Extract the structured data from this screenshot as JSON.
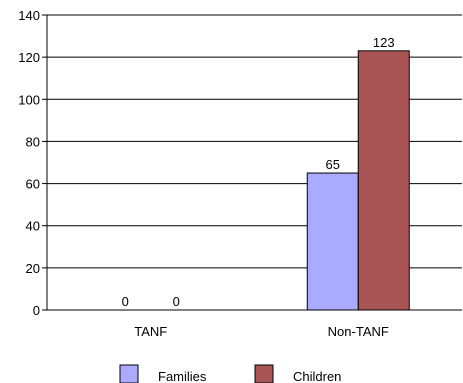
{
  "chart_data": {
    "type": "bar",
    "categories": [
      "TANF",
      "Non-TANF"
    ],
    "series": [
      {
        "name": "Families",
        "values": [
          0,
          65
        ],
        "color": "#aaaaff"
      },
      {
        "name": "Children",
        "values": [
          0,
          123
        ],
        "color": "#aa5555"
      }
    ],
    "data_labels": [
      [
        "0",
        "65"
      ],
      [
        "0",
        "123"
      ]
    ],
    "title": "",
    "xlabel": "",
    "ylabel": "",
    "ylim": [
      0,
      140
    ],
    "yticks": [
      0,
      20,
      40,
      60,
      80,
      100,
      120,
      140
    ],
    "grid": true,
    "legend": "bottom"
  }
}
